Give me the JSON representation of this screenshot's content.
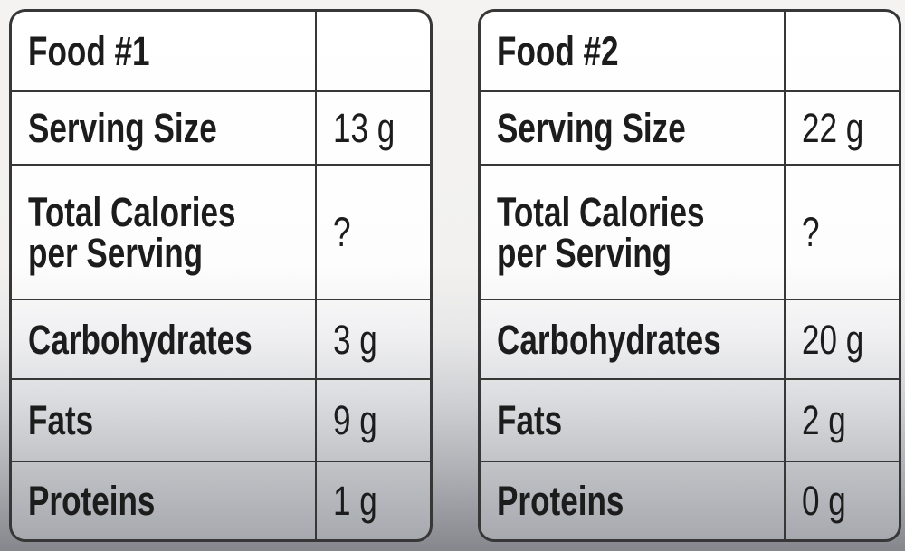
{
  "style": {
    "background_top": "#f4f3f1",
    "background_bottom": "#85878d",
    "table_top": "#ffffff",
    "table_bottom": "#a6a9ae",
    "border_color": "#373737",
    "text_color": "#1c1c1c"
  },
  "chart_data": [
    {
      "type": "table",
      "title": "Food #1",
      "rows": [
        {
          "label": "Serving Size",
          "value": "13 g"
        },
        {
          "label": "Total Calories per Serving",
          "value": "?"
        },
        {
          "label": "Carbohydrates",
          "value": "3 g"
        },
        {
          "label": "Fats",
          "value": "9 g"
        },
        {
          "label": "Proteins",
          "value": "1 g"
        }
      ]
    },
    {
      "type": "table",
      "title": "Food #2",
      "rows": [
        {
          "label": "Serving Size",
          "value": "22 g"
        },
        {
          "label": "Total Calories per Serving",
          "value": "?"
        },
        {
          "label": "Carbohydrates",
          "value": "20 g"
        },
        {
          "label": "Fats",
          "value": "2 g"
        },
        {
          "label": "Proteins",
          "value": "0 g"
        }
      ]
    }
  ]
}
